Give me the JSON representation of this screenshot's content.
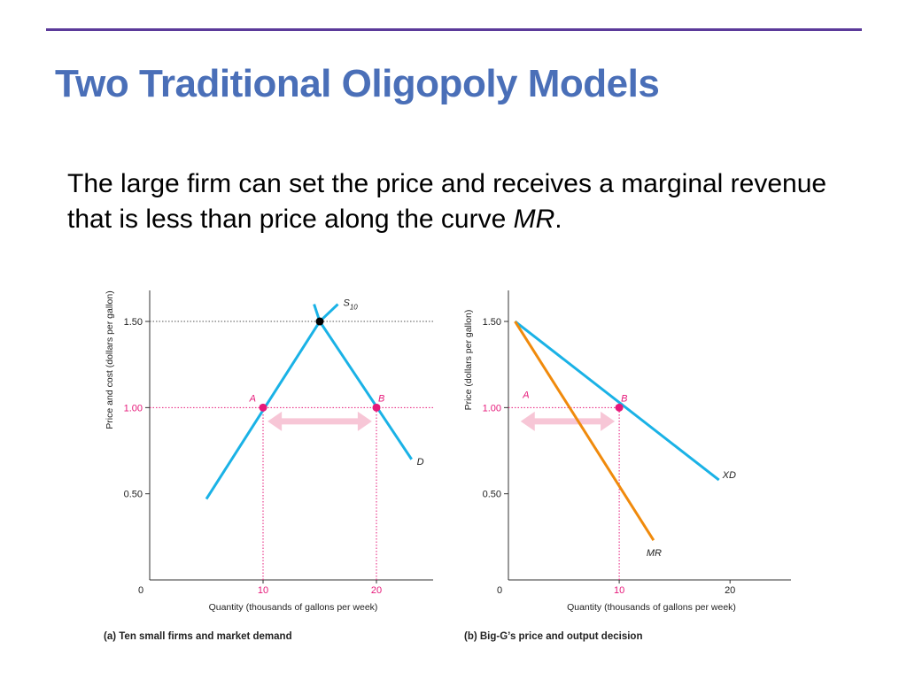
{
  "slide": {
    "title": "Two Traditional Oligopoly Models",
    "body_pre": "The large firm can set the price and receives a marginal revenue that is less than price along the curve ",
    "body_italic": "MR",
    "body_post": "."
  },
  "colors": {
    "title": "#4a6fb8",
    "rule": "#5b3a9a",
    "curve": "#1ab2e6",
    "mr": "#f08a0c",
    "point": "#e6197a",
    "arrow": "#f7c6d6"
  },
  "chart_data": [
    {
      "type": "line",
      "caption": "(a) Ten small firms and market demand",
      "xlabel": "Quantity (thousands of gallons per week)",
      "ylabel": "Price and cost (dollars per gallon)",
      "xlim": [
        0,
        25
      ],
      "ylim": [
        0,
        1.68
      ],
      "xticks": [
        {
          "v": 0,
          "label": "0"
        },
        {
          "v": 10,
          "label": "10"
        },
        {
          "v": 20,
          "label": "20"
        }
      ],
      "yticks": [
        {
          "v": 0.5,
          "label": "0.50"
        },
        {
          "v": 1.0,
          "label": "1.00"
        },
        {
          "v": 1.5,
          "label": "1.50"
        }
      ],
      "series": [
        {
          "name": "S10",
          "label_main": "S",
          "label_sub": "10",
          "color": "#1ab2e6",
          "points": [
            [
              5,
              0.47
            ],
            [
              15,
              1.5
            ],
            [
              16.6,
              1.6
            ]
          ]
        },
        {
          "name": "D",
          "label_main": "D",
          "color": "#1ab2e6",
          "points": [
            [
              14.5,
              1.6
            ],
            [
              15,
              1.5
            ],
            [
              23.1,
              0.7
            ]
          ]
        }
      ],
      "points": [
        {
          "label": "",
          "x": 15,
          "y": 1.5,
          "color": "#000000"
        },
        {
          "label": "A",
          "x": 10,
          "y": 1.0,
          "color": "#e6197a"
        },
        {
          "label": "B",
          "x": 20,
          "y": 1.0,
          "color": "#e6197a"
        }
      ],
      "guides": [
        {
          "from": [
            0,
            1.5
          ],
          "to": [
            25,
            1.5
          ],
          "color": "#555555"
        },
        {
          "from": [
            0,
            1.0
          ],
          "to": [
            25,
            1.0
          ],
          "color": "#e6197a"
        },
        {
          "from": [
            10,
            0
          ],
          "to": [
            10,
            1.0
          ],
          "color": "#e6197a"
        },
        {
          "from": [
            20,
            0
          ],
          "to": [
            20,
            1.0
          ],
          "color": "#e6197a"
        }
      ],
      "arrow": {
        "from": [
          10.4,
          0.92
        ],
        "to": [
          19.6,
          0.92
        ]
      }
    },
    {
      "type": "line",
      "caption": "(b) Big-G’s price and output decision",
      "xlabel": "Quantity (thousands of gallons per week)",
      "ylabel": "Price (dollars per gallon)",
      "xlim": [
        0,
        25.5
      ],
      "ylim": [
        0,
        1.68
      ],
      "xticks": [
        {
          "v": 0,
          "label": "0"
        },
        {
          "v": 10,
          "label": "10"
        },
        {
          "v": 20,
          "label": "20"
        }
      ],
      "yticks": [
        {
          "v": 0.5,
          "label": "0.50"
        },
        {
          "v": 1.0,
          "label": "1.00"
        },
        {
          "v": 1.5,
          "label": "1.50"
        }
      ],
      "series": [
        {
          "name": "XD",
          "label_main": "XD",
          "color": "#1ab2e6",
          "points": [
            [
              0.6,
              1.5
            ],
            [
              19,
              0.58
            ]
          ]
        },
        {
          "name": "MR",
          "label_main": "MR",
          "color": "#f08a0c",
          "points": [
            [
              0.6,
              1.5
            ],
            [
              13.1,
              0.23
            ]
          ]
        }
      ],
      "points": [
        {
          "label": "B",
          "x": 10,
          "y": 1.0,
          "color": "#e6197a"
        }
      ],
      "extra_labels": [
        {
          "text": "A",
          "x": 1.3,
          "y": 1.03,
          "color": "#e6197a"
        }
      ],
      "guides": [
        {
          "from": [
            0,
            1.0
          ],
          "to": [
            10,
            1.0
          ],
          "color": "#e6197a"
        },
        {
          "from": [
            10,
            0
          ],
          "to": [
            10,
            1.0
          ],
          "color": "#e6197a"
        }
      ],
      "arrow": {
        "from": [
          1.1,
          0.92
        ],
        "to": [
          9.6,
          0.92
        ]
      }
    }
  ]
}
